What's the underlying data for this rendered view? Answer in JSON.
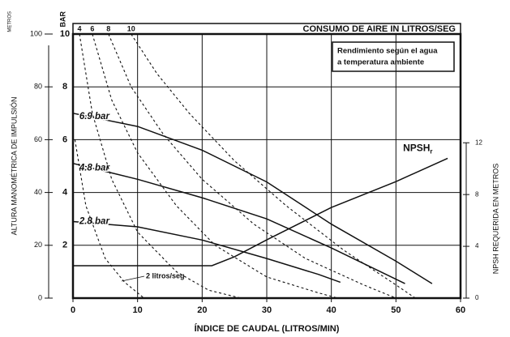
{
  "chart_data": {
    "type": "line",
    "caption": "CONSUMO DE AIRE IN LITROS/SEG",
    "note": [
      "Rendimiento según el agua",
      "a temperatura ambiente"
    ],
    "x_label": "ÍNDICE DE CAUDAL (LITROS/MIN)",
    "y_label": "ALTURA MANOMÉTRICA DE IMPULSIÓN",
    "y_unit": "METROS",
    "ybar_unit": "BAR",
    "y2_label": "NPSH REQUERIDA EN METROS",
    "xlim": [
      0,
      60
    ],
    "xticks": [
      0,
      10,
      20,
      30,
      40,
      50,
      60
    ],
    "ylim": [
      0,
      100
    ],
    "yticks": [
      0,
      20,
      40,
      60,
      80,
      100
    ],
    "ybarlim": [
      0,
      10
    ],
    "ybarticks": [
      2,
      4,
      6,
      8,
      10
    ],
    "y2lim": [
      0,
      20.4
    ],
    "y2ticks": [
      0,
      4,
      8,
      12
    ],
    "grid": true,
    "series": [
      {
        "name": "6.9 bar",
        "style": "solid",
        "color": "#111111",
        "x": [
          0,
          10,
          20,
          30,
          40,
          50,
          55.6
        ],
        "values": [
          70,
          65,
          56,
          44,
          28,
          14,
          5.5
        ]
      },
      {
        "name": "4.8 bar",
        "style": "solid",
        "color": "#111111",
        "x": [
          0,
          10,
          20,
          30,
          40,
          51.4
        ],
        "values": [
          51,
          45,
          38,
          30,
          19,
          5.5
        ]
      },
      {
        "name": "2.8 bar",
        "style": "solid",
        "color": "#111111",
        "x": [
          0,
          10,
          20,
          30,
          38,
          41.4
        ],
        "values": [
          29,
          27,
          22,
          15,
          9,
          6
        ]
      },
      {
        "name": "NPSH",
        "sub": "r",
        "style": "solid",
        "axis": "y2",
        "color": "#111111",
        "x": [
          0,
          21.5,
          25,
          30,
          40,
          50,
          58
        ],
        "values": [
          2.5,
          2.5,
          3.2,
          4.5,
          7,
          9,
          10.8
        ]
      },
      {
        "name": "2 litros/seg",
        "style": "dashed",
        "color": "#111111",
        "x": [
          0.3,
          2,
          5,
          8,
          10,
          11
        ],
        "values": [
          60,
          35,
          15,
          6,
          2,
          0
        ]
      },
      {
        "name": "4",
        "style": "dashed",
        "color": "#111111",
        "x": [
          1,
          3,
          6,
          10,
          16,
          21,
          26
        ],
        "values": [
          100,
          70,
          45,
          25,
          10,
          3,
          0
        ]
      },
      {
        "name": "6",
        "style": "dashed",
        "color": "#111111",
        "x": [
          3,
          6,
          10,
          16,
          22,
          30,
          38,
          41
        ],
        "values": [
          100,
          75,
          55,
          35,
          20,
          8,
          2,
          0
        ]
      },
      {
        "name": "8",
        "style": "dashed",
        "color": "#111111",
        "x": [
          5.5,
          9,
          14,
          20,
          28,
          36,
          45,
          50
        ],
        "values": [
          100,
          80,
          62,
          45,
          28,
          15,
          5,
          0
        ]
      },
      {
        "name": "10",
        "style": "dashed",
        "color": "#111111",
        "x": [
          9,
          13,
          18,
          25,
          33,
          42,
          50,
          53
        ],
        "values": [
          100,
          85,
          70,
          52,
          35,
          18,
          5,
          0
        ]
      }
    ]
  }
}
